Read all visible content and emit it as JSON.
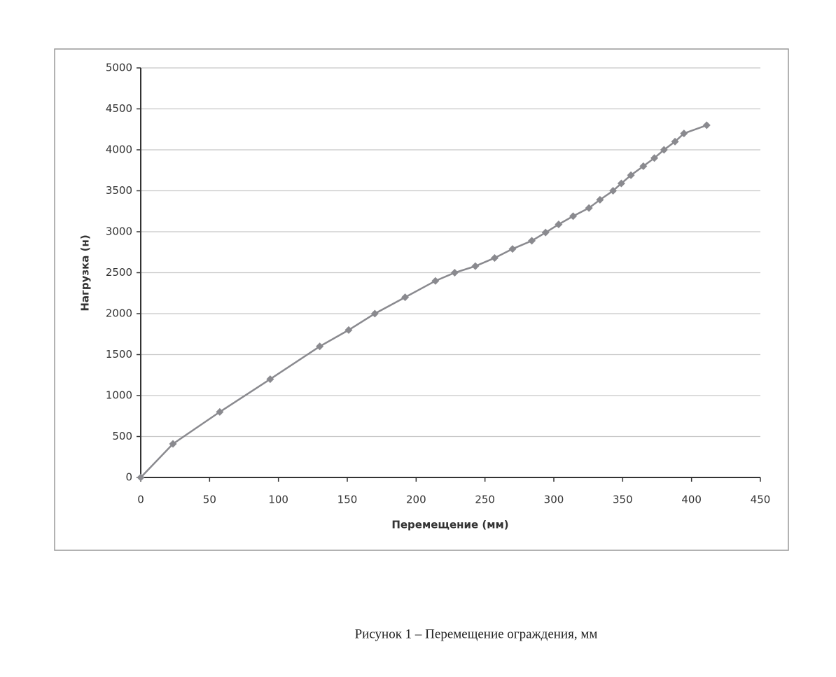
{
  "chart_data": {
    "type": "line",
    "x_label": "Перемещение (мм)",
    "y_label": "Нагрузка (н)",
    "x": [
      0,
      23.4,
      57.4,
      94,
      130,
      151,
      170,
      192,
      214,
      228,
      243,
      257,
      270,
      284,
      294,
      303.5,
      314,
      325.5,
      333.5,
      343,
      349,
      356,
      365,
      373,
      380,
      388,
      394.5,
      411
    ],
    "values": [
      0,
      410,
      800,
      1200,
      1600,
      1800,
      2000,
      2200,
      2400,
      2500,
      2580,
      2680,
      2790,
      2890,
      2990,
      3090,
      3190,
      3290,
      3390,
      3500,
      3590,
      3690,
      3800,
      3900,
      4000,
      4100,
      4200,
      4300
    ],
    "color": "#8a8a8f",
    "xlim": [
      0,
      450
    ],
    "xticks": [
      0,
      50,
      100,
      150,
      200,
      250,
      300,
      350,
      400,
      450
    ],
    "ylim": [
      0,
      5000
    ],
    "yticks": [
      0,
      500,
      1000,
      1500,
      2000,
      2500,
      3000,
      3500,
      4000,
      4500,
      5000
    ],
    "grid": true
  },
  "caption": "Рисунок 1 – Перемещение ограждения, мм"
}
